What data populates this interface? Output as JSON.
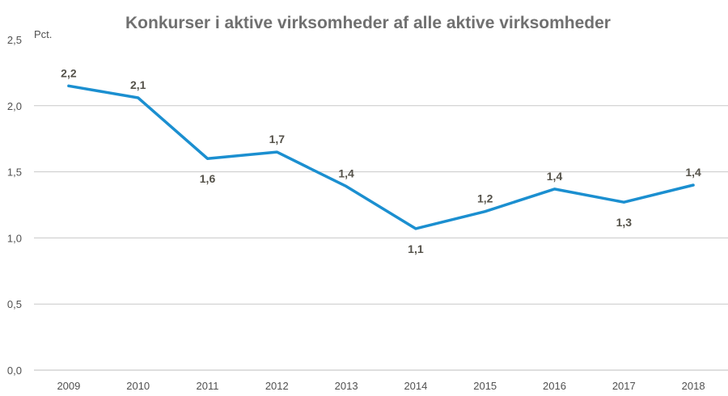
{
  "chart_data": {
    "type": "line",
    "title": "Konkurser i aktive virksomheder af alle aktive virksomheder",
    "unit_label": "Pct.",
    "xlabel": "",
    "ylabel": "",
    "categories": [
      "2009",
      "2010",
      "2011",
      "2012",
      "2013",
      "2014",
      "2015",
      "2016",
      "2017",
      "2018"
    ],
    "series": [
      {
        "values": [
          2.15,
          2.06,
          1.6,
          1.65,
          1.39,
          1.07,
          1.2,
          1.37,
          1.27,
          1.4
        ],
        "data_labels": [
          "2,2",
          "2,1",
          "1,6",
          "1,7",
          "1,4",
          "1,1",
          "1,2",
          "1,4",
          "1,3",
          "1,4"
        ],
        "color": "#1b8fd0"
      }
    ],
    "ylim": [
      0,
      2.5
    ],
    "yticks": [
      0,
      0.5,
      1.0,
      1.5,
      2.0,
      2.5
    ],
    "ytick_labels": [
      "0,0",
      "0,5",
      "1,0",
      "1,5",
      "2,0",
      "2,5"
    ],
    "grid": true,
    "legend": "none"
  }
}
